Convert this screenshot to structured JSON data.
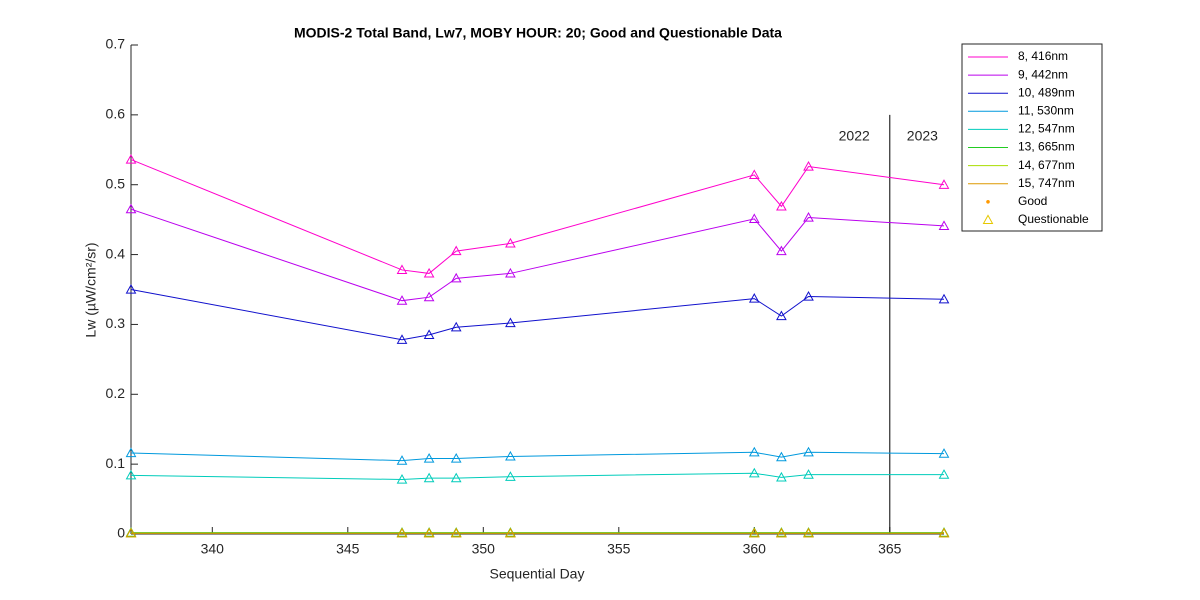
{
  "chart_data": {
    "type": "line",
    "title": "MODIS-2 Total Band,  Lw7, MOBY HOUR: 20;  Good and Questionable Data",
    "xlabel": "Sequential Day",
    "ylabel": "Lw (µW/cm²/sr)",
    "x": [
      337,
      347,
      348,
      349,
      351,
      360,
      361,
      362,
      367
    ],
    "series": [
      {
        "name": "8, 416nm",
        "color": "#ff00cc",
        "values": [
          0.536,
          0.378,
          0.373,
          0.405,
          0.416,
          0.514,
          0.469,
          0.526,
          0.5
        ]
      },
      {
        "name": "9, 442nm",
        "color": "#bb00ee",
        "values": [
          0.465,
          0.334,
          0.339,
          0.366,
          0.373,
          0.451,
          0.405,
          0.453,
          0.441
        ]
      },
      {
        "name": "10, 489nm",
        "color": "#1010cc",
        "values": [
          0.35,
          0.278,
          0.285,
          0.296,
          0.302,
          0.337,
          0.312,
          0.34,
          0.336
        ]
      },
      {
        "name": "11, 530nm",
        "color": "#0099dd",
        "values": [
          0.116,
          0.105,
          0.108,
          0.108,
          0.111,
          0.117,
          0.11,
          0.117,
          0.115
        ]
      },
      {
        "name": "12, 547nm",
        "color": "#00ccbb",
        "values": [
          0.084,
          0.078,
          0.08,
          0.08,
          0.082,
          0.087,
          0.081,
          0.085,
          0.085
        ]
      },
      {
        "name": "13, 665nm",
        "color": "#22cc22",
        "values": [
          0.002,
          0.002,
          0.002,
          0.002,
          0.002,
          0.002,
          0.002,
          0.002,
          0.002
        ]
      },
      {
        "name": "14, 677nm",
        "color": "#aadd00",
        "values": [
          0.001,
          0.001,
          0.001,
          0.001,
          0.001,
          0.001,
          0.001,
          0.001,
          0.001
        ]
      },
      {
        "name": "15, 747nm",
        "color": "#dd9900",
        "values": [
          0.001,
          0.001,
          0.001,
          0.001,
          0.001,
          0.001,
          0.001,
          0.001,
          0.001
        ]
      }
    ],
    "quality_legend": [
      {
        "name": "Good",
        "color": "#ff9900",
        "marker": "dot"
      },
      {
        "name": "Questionable",
        "color": "#e6c800",
        "marker": "triangle"
      }
    ],
    "divider": {
      "x": 365,
      "top": 0.6,
      "labels": [
        "2022",
        "2023"
      ]
    },
    "xlim": [
      337,
      367
    ],
    "xticks": [
      340,
      345,
      350,
      355,
      360,
      365
    ],
    "ylim": [
      0,
      0.7
    ],
    "yticks": [
      0,
      0.1,
      0.2,
      0.3,
      0.4,
      0.5,
      0.6,
      0.7
    ],
    "legend": "outside-right"
  }
}
